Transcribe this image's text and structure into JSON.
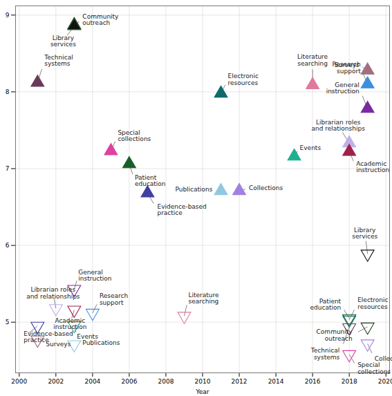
{
  "chart_data": {
    "type": "scatter",
    "x_label": "Year",
    "xlim": [
      1999.8,
      2020.2
    ],
    "xticks": [
      2000,
      2002,
      2004,
      2006,
      2008,
      2010,
      2012,
      2014,
      2016,
      2018,
      2020
    ],
    "ylim": [
      4.34,
      9.12
    ],
    "yticks": [
      5,
      6,
      7,
      8,
      9
    ],
    "grid": true,
    "series": [
      {
        "marker": "triangle-up",
        "x": [
          2003,
          2003,
          2001,
          2011,
          2016,
          2019,
          2019,
          2019,
          2005,
          2006,
          2007,
          2011,
          2012,
          2015,
          2018,
          2018
        ],
        "values": [
          8.87,
          8.86,
          8.12,
          7.98,
          8.09,
          8.28,
          8.1,
          7.78,
          7.23,
          7.06,
          6.68,
          6.71,
          6.71,
          7.16,
          7.33,
          7.22
        ],
        "labels": [
          "Community\noutreach",
          "Library\nservices",
          "Technical\nsystems",
          "Electronic\nresources",
          "Literature\nsearching",
          "Surveys",
          "Research\nsupport",
          "General\ninstruction",
          "Special\ncollections",
          "Patient\neducation",
          "Evidence-based\npractice",
          "Publications",
          "Collections",
          "Events",
          "Librarian roles\nand relationships",
          "Academic\ninstruction"
        ],
        "colors": [
          "#1f3a1f",
          "#111111",
          "#6b3a5a",
          "#0e6b6b",
          "#e07a9a",
          "#a07080",
          "#3a8fe0",
          "#7a2aa0",
          "#e040a0",
          "#1a5e2a",
          "#4040a0",
          "#90c8e0",
          "#a080e0",
          "#20b090",
          "#c0b0e8",
          "#a0204a"
        ]
      },
      {
        "marker": "triangle-down-open",
        "x": [
          2019,
          2002,
          2003,
          2003,
          2004,
          2003,
          2003,
          2001,
          2001,
          2009,
          2018,
          2018,
          2018,
          2019,
          2019,
          2018
        ],
        "values": [
          5.89,
          5.18,
          5.43,
          5.16,
          5.12,
          4.96,
          4.71,
          4.95,
          4.77,
          5.08,
          5.05,
          5.03,
          4.93,
          4.94,
          4.72,
          4.58
        ],
        "labels": [
          "Library\nservices",
          "Librarian roles\nand relationships",
          "General\ninstruction",
          "Academic\ninstruction",
          "Research\nsupport",
          "Events",
          "Publications",
          "Evidence-based\npractice",
          "Surveys",
          "Literature\nsearching",
          "Patient\neducation",
          "Electronic\nresources",
          "Technical\nsystems",
          "Community\noutreach",
          "Collections",
          "Special\ncollections"
        ],
        "colors": [
          "#111111",
          "#c0b0e8",
          "#7a2aa0",
          "#a0204a",
          "#3a8fe0",
          "#20b090",
          "#90c8e0",
          "#4040a0",
          "#a07080",
          "#e07a9a",
          "#1a5e2a",
          "#0e6b6b",
          "#6b3a5a",
          "#1f3a1f",
          "#a080e0",
          "#e040a0"
        ]
      }
    ]
  }
}
